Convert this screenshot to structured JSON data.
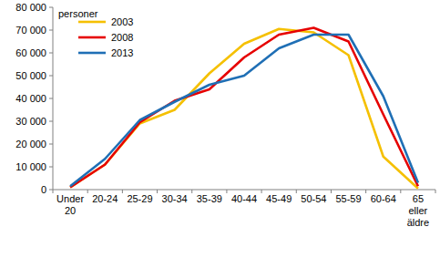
{
  "chart_data": {
    "type": "line",
    "y_label": "personer",
    "categories": [
      "Under 20",
      "20-24",
      "25-29",
      "30-34",
      "35-39",
      "40-44",
      "45-49",
      "50-54",
      "55-59",
      "60-64",
      "65 eller äldre"
    ],
    "series": [
      {
        "name": "2003",
        "color": "#f5c000",
        "values": [
          1000,
          11000,
          29000,
          35000,
          51000,
          64000,
          70500,
          69000,
          59000,
          14500,
          500
        ]
      },
      {
        "name": "2008",
        "color": "#e60000",
        "values": [
          1000,
          11000,
          29500,
          39000,
          44000,
          58000,
          68000,
          71000,
          65000,
          33000,
          1500
        ]
      },
      {
        "name": "2013",
        "color": "#1f6fb5",
        "values": [
          1500,
          13500,
          30500,
          38500,
          46000,
          50000,
          62000,
          68000,
          68000,
          41000,
          3000
        ]
      }
    ],
    "ylim": [
      0,
      80000
    ],
    "yticks": [
      {
        "value": 0,
        "label": "0"
      },
      {
        "value": 10000,
        "label": "10 000"
      },
      {
        "value": 20000,
        "label": "20 000"
      },
      {
        "value": 30000,
        "label": "30 000"
      },
      {
        "value": 40000,
        "label": "40 000"
      },
      {
        "value": 50000,
        "label": "50 000"
      },
      {
        "value": 60000,
        "label": "60 000"
      },
      {
        "value": 70000,
        "label": "70 000"
      },
      {
        "value": 80000,
        "label": "80 000"
      }
    ],
    "grid": false,
    "legend": "upper left"
  }
}
